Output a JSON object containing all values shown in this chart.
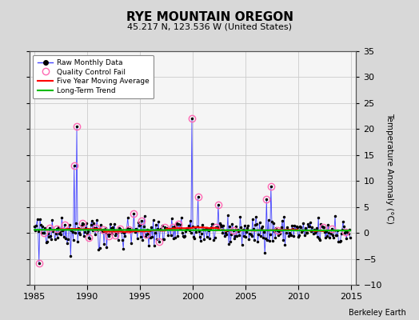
{
  "title": "RYE MOUNTAIN OREGON",
  "subtitle": "45.217 N, 123.536 W (United States)",
  "credit": "Berkeley Earth",
  "xlim": [
    1984.5,
    2015.5
  ],
  "ylim": [
    -10,
    35
  ],
  "yticks": [
    -10,
    -5,
    0,
    5,
    10,
    15,
    20,
    25,
    30,
    35
  ],
  "xticks": [
    1985,
    1990,
    1995,
    2000,
    2005,
    2010,
    2015
  ],
  "ylabel_right": "Temperature Anomaly (°C)",
  "raw_color": "#4444ff",
  "raw_marker_color": "#000000",
  "qc_fail_color": "#ff69b4",
  "moving_avg_color": "#ff0000",
  "trend_color": "#00bb00",
  "fig_background_color": "#d8d8d8",
  "plot_background_color": "#f5f5f5",
  "grid_color": "#cccccc",
  "seed": 42,
  "n_years": 30,
  "start_year": 1985,
  "noise_std": 1.3
}
